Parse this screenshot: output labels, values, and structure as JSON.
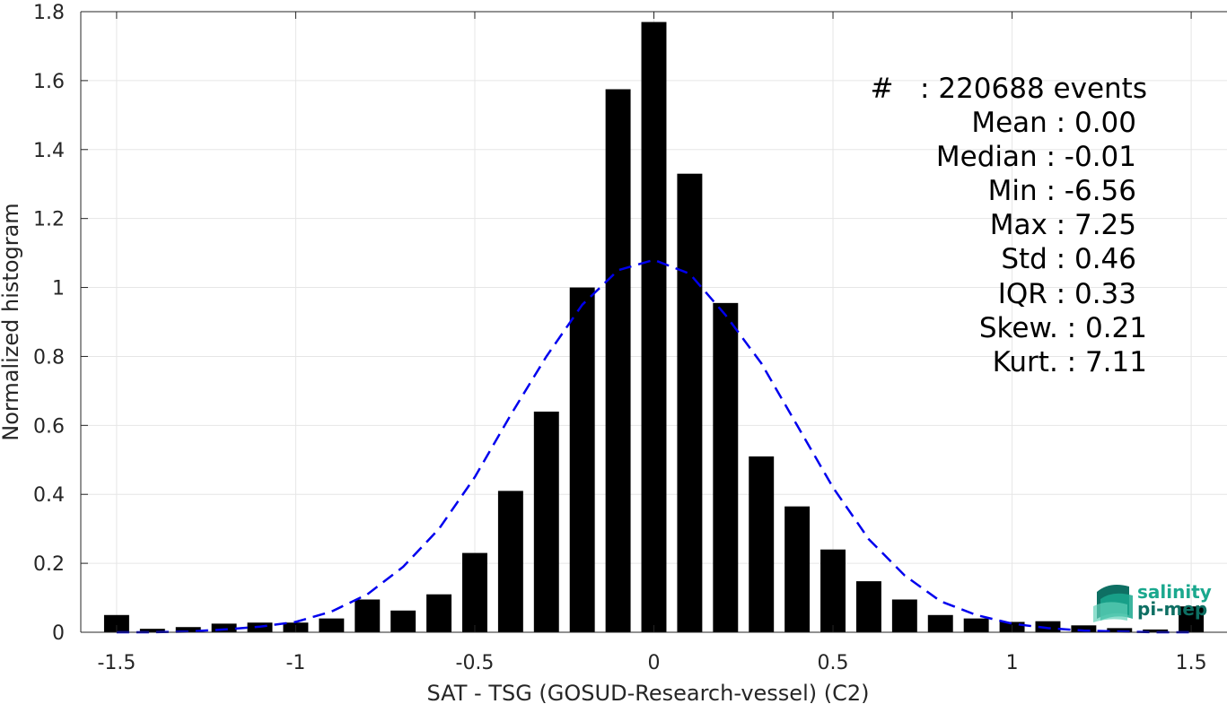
{
  "chart_data": {
    "type": "bar",
    "xlabel": "SAT - TSG (GOSUD-Research-vessel) (C2)",
    "ylabel": "Normalized histogram",
    "xlim": [
      -1.6,
      1.6
    ],
    "ylim": [
      0,
      1.8
    ],
    "grid": true,
    "bar_color": "#000000",
    "x_ticks": [
      -1.5,
      -1,
      -0.5,
      0,
      0.5,
      1,
      1.5
    ],
    "x_tick_labels": [
      "-1.5",
      "-1",
      "-0.5",
      "0",
      "0.5",
      "1",
      "1.5"
    ],
    "y_ticks": [
      0,
      0.2,
      0.4,
      0.6,
      0.8,
      1,
      1.2,
      1.4,
      1.6,
      1.8
    ],
    "y_tick_labels": [
      "0",
      "0.2",
      "0.4",
      "0.6",
      "0.8",
      "1",
      "1.2",
      "1.4",
      "1.6",
      "1.8"
    ],
    "bar_width": 0.07,
    "bins": [
      -1.5,
      -1.4,
      -1.3,
      -1.2,
      -1.1,
      -1.0,
      -0.9,
      -0.8,
      -0.7,
      -0.6,
      -0.5,
      -0.4,
      -0.3,
      -0.2,
      -0.1,
      0.0,
      0.1,
      0.2,
      0.3,
      0.4,
      0.5,
      0.6,
      0.7,
      0.8,
      0.9,
      1.0,
      1.1,
      1.2,
      1.3,
      1.4,
      1.5
    ],
    "values": [
      0.05,
      0.01,
      0.015,
      0.025,
      0.028,
      0.028,
      0.04,
      0.095,
      0.063,
      0.11,
      0.23,
      0.41,
      0.64,
      1.0,
      1.575,
      1.77,
      1.33,
      0.955,
      0.51,
      0.365,
      0.24,
      0.148,
      0.095,
      0.05,
      0.04,
      0.03,
      0.032,
      0.02,
      0.012,
      0.008,
      0.075
    ],
    "fit_curve": {
      "style": "dashed",
      "color": "#0000ee",
      "x": [
        -1.5,
        -1.4,
        -1.3,
        -1.2,
        -1.1,
        -1.0,
        -0.9,
        -0.8,
        -0.7,
        -0.6,
        -0.5,
        -0.4,
        -0.3,
        -0.2,
        -0.1,
        0.0,
        0.1,
        0.2,
        0.3,
        0.4,
        0.5,
        0.6,
        0.7,
        0.8,
        0.9,
        1.0,
        1.1,
        1.2,
        1.3,
        1.4,
        1.5
      ],
      "y": [
        0.0,
        0.0,
        0.002,
        0.008,
        0.016,
        0.03,
        0.06,
        0.11,
        0.19,
        0.3,
        0.45,
        0.63,
        0.8,
        0.95,
        1.05,
        1.08,
        1.04,
        0.92,
        0.78,
        0.6,
        0.42,
        0.27,
        0.165,
        0.09,
        0.05,
        0.025,
        0.012,
        0.005,
        0.002,
        0.0,
        0.0
      ]
    },
    "annotations": [
      "#   : 220688 events",
      "Mean : 0.00",
      "Median : -0.01",
      "Min : -6.56",
      "Max : 7.25",
      "Std : 0.46",
      "IQR : 0.33",
      "Skew. : 0.21",
      "Kurt. : 7.11"
    ]
  },
  "logo": {
    "line1": "salinity",
    "line2": "pi-mep",
    "color1": "#1aa88e",
    "color2": "#0e6f63"
  }
}
